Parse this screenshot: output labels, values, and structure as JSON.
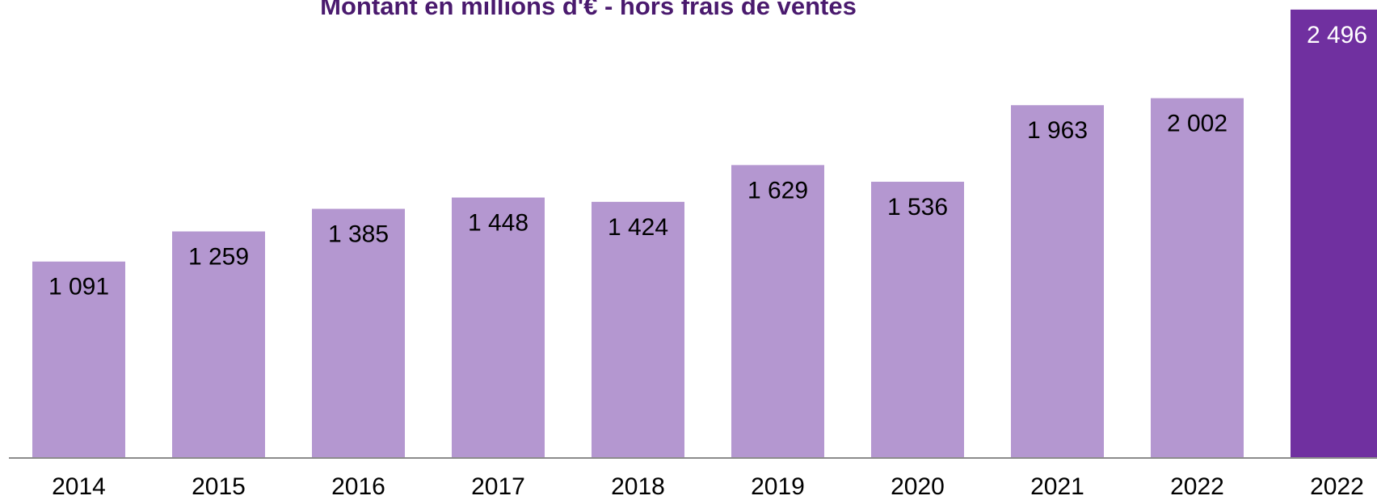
{
  "chart_data": {
    "type": "bar",
    "title": "Montant  en millions d'€ - hors frais de ventes",
    "categories": [
      "2014",
      "2015",
      "2016",
      "2017",
      "2018",
      "2019",
      "2020",
      "2021",
      "2022",
      "2022"
    ],
    "values": [
      1091,
      1259,
      1385,
      1448,
      1424,
      1629,
      1536,
      1963,
      2002,
      2496
    ],
    "value_labels": [
      "1 091",
      "1 259",
      "1 385",
      "1 448",
      "1 424",
      "1 629",
      "1 536",
      "1 963",
      "2 002",
      "2 496"
    ],
    "colors": [
      "#b497d0",
      "#b497d0",
      "#b497d0",
      "#b497d0",
      "#b497d0",
      "#b497d0",
      "#b497d0",
      "#b497d0",
      "#b497d0",
      "#7030a0"
    ],
    "label_colors": [
      "#000000",
      "#000000",
      "#000000",
      "#000000",
      "#000000",
      "#000000",
      "#000000",
      "#000000",
      "#000000",
      "#ffffff"
    ],
    "ylim": [
      0,
      2500
    ]
  }
}
